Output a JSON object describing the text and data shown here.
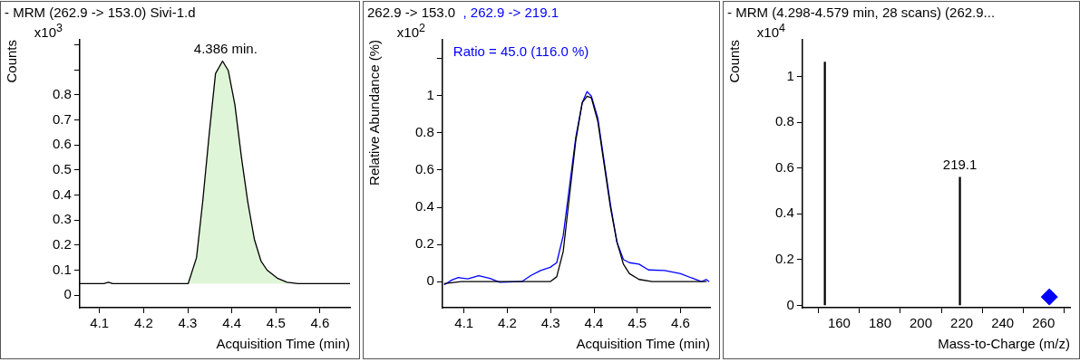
{
  "chart_data": [
    {
      "type": "line",
      "title": "- MRM (262.9 -> 153.0) Sivi-1.d",
      "xlabel": "Acquisition Time (min)",
      "ylabel": "Counts",
      "annotations": [
        "x10$^{3}$",
        {
          "text": "4.386 min.",
          "x": 4.386,
          "y": 0.935
        }
      ],
      "xlim": [
        4.055,
        4.668
      ],
      "xticks": [
        4.1,
        4.2,
        4.3,
        4.4,
        4.5,
        4.6
      ],
      "ylim": [
        -0.05,
        1.02
      ],
      "yticks": [
        0,
        0.1,
        0.2,
        0.3,
        0.4,
        0.5,
        0.6,
        0.7,
        0.8,
        {
          "value": 0.9,
          "label": null
        },
        {
          "value": 1,
          "label": null
        }
      ],
      "series": [
        {
          "color": "#000000",
          "x": [
            4.055,
            4.11,
            4.12,
            4.13,
            4.301,
            4.32,
            4.334,
            4.349,
            4.363,
            4.379,
            4.392,
            4.407,
            4.422,
            4.436,
            4.451,
            4.466,
            4.48,
            4.503,
            4.525,
            4.55,
            4.668
          ],
          "values": [
            0.046,
            0.046,
            0.052,
            0.046,
            0.046,
            0.15,
            0.374,
            0.648,
            0.885,
            0.935,
            0.897,
            0.76,
            0.548,
            0.374,
            0.224,
            0.137,
            0.1,
            0.068,
            0.052,
            0.046,
            0.046
          ]
        },
        {
          "type": "area",
          "color": "#dff5d8",
          "x": [
            4.301,
            4.32,
            4.334,
            4.349,
            4.363,
            4.379,
            4.392,
            4.407,
            4.422,
            4.436,
            4.451,
            4.466,
            4.48,
            4.503,
            4.525,
            4.55
          ],
          "values": [
            0.046,
            0.15,
            0.374,
            0.648,
            0.885,
            0.935,
            0.897,
            0.76,
            0.548,
            0.374,
            0.224,
            0.137,
            0.1,
            0.068,
            0.052,
            0.046
          ]
        }
      ]
    },
    {
      "type": "line",
      "ylabel": "Relative Abundance (%)",
      "xlabel": "Acquisition Time (min)",
      "legend": "top left",
      "annotations": [
        "x10$^{2}$",
        "Ratio = 45.0 (116.0 %)"
      ],
      "xlim": [
        4.05,
        4.668
      ],
      "xticks": [
        4.1,
        4.2,
        4.3,
        4.4,
        4.5,
        4.6
      ],
      "ylim": [
        -0.14,
        1.3
      ],
      "yticks": [
        0,
        0.2,
        0.4,
        0.6,
        0.8,
        1,
        {
          "value": 1.2,
          "label": null
        }
      ],
      "series": [
        {
          "name": "262.9 -> 153.0",
          "color": "#000000",
          "x": [
            4.054,
            4.094,
            4.299,
            4.314,
            4.329,
            4.343,
            4.358,
            4.373,
            4.384,
            4.394,
            4.409,
            4.424,
            4.438,
            4.453,
            4.468,
            4.482,
            4.504,
            4.534,
            4.66
          ],
          "values": [
            -0.01,
            0,
            0,
            0.026,
            0.162,
            0.451,
            0.758,
            0.963,
            0.997,
            0.988,
            0.86,
            0.622,
            0.4,
            0.213,
            0.094,
            0.043,
            0.012,
            0,
            0
          ]
        },
        {
          "name": ", 262.9 -> 219.1",
          "color": "#0000ff",
          "x": [
            4.054,
            4.072,
            4.087,
            4.109,
            4.134,
            4.16,
            4.182,
            4.233,
            4.255,
            4.277,
            4.299,
            4.314,
            4.329,
            4.343,
            4.358,
            4.373,
            4.384,
            4.394,
            4.409,
            4.424,
            4.438,
            4.453,
            4.468,
            4.482,
            4.504,
            4.526,
            4.563,
            4.6,
            4.629,
            4.648,
            4.659,
            4.666
          ],
          "values": [
            -0.017,
            0.009,
            0.022,
            0.015,
            0.032,
            0.017,
            -0.003,
            0,
            0.034,
            0.06,
            0.077,
            0.102,
            0.247,
            0.502,
            0.775,
            0.963,
            1.022,
            0.997,
            0.878,
            0.639,
            0.417,
            0.213,
            0.119,
            0.102,
            0.094,
            0.063,
            0.06,
            0.043,
            0.017,
            0,
            0.012,
            0
          ]
        }
      ]
    },
    {
      "type": "bar",
      "title": "- MRM (4.298-4.579 min, 28 scans) (262.9...",
      "xlabel": "Mass-to-Charge (m/z)",
      "ylabel": "Counts",
      "marker": "diamond",
      "annotations": [
        "x10$^{4}$",
        {
          "text": "219.1",
          "x": 219.1,
          "y": 0.56
        }
      ],
      "xlim": [
        142,
        273
      ],
      "xticks": [
        160,
        180,
        200,
        220,
        240,
        260
      ],
      "ylim": [
        -0.01,
        1.16
      ],
      "yticks": [
        0,
        0.2,
        0.4,
        0.6,
        0.8,
        1
      ],
      "series": [
        {
          "color": "#000000",
          "x": [
            153.0,
            219.1
          ],
          "values": [
            1.063,
            0.56
          ]
        },
        {
          "type": "scatter",
          "color": "#0000ff",
          "x": [
            262.9
          ],
          "values": [
            0.037
          ]
        }
      ]
    }
  ]
}
